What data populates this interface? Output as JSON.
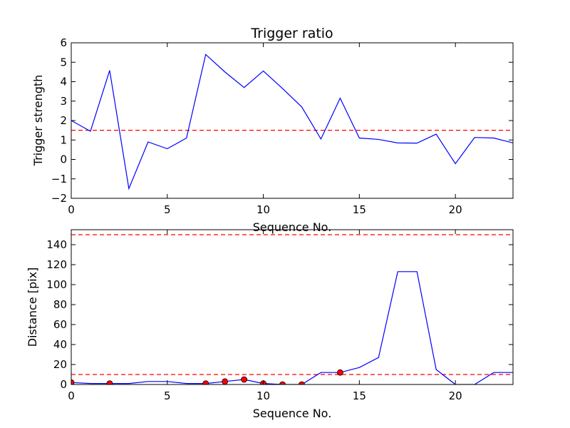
{
  "chart_data": [
    {
      "type": "line",
      "title": "Trigger ratio",
      "xlabel": "Sequence No.",
      "ylabel": "Trigger strength",
      "xlim": [
        0,
        23
      ],
      "ylim": [
        -2,
        6
      ],
      "xticks": [
        0,
        5,
        10,
        15,
        20
      ],
      "yticks": [
        -2,
        -1,
        0,
        1,
        2,
        3,
        4,
        5,
        6
      ],
      "xtick_labels": [
        "0",
        "5",
        "10",
        "15",
        "20"
      ],
      "ytick_labels": [
        "−2",
        "−1",
        "0",
        "1",
        "2",
        "3",
        "4",
        "5",
        "6"
      ],
      "grid": false,
      "series": [
        {
          "color": "#0000ff",
          "style": "solid",
          "x": [
            0,
            1,
            2,
            3,
            4,
            5,
            6,
            7,
            8,
            9,
            10,
            11,
            12,
            13,
            14,
            15,
            16,
            17,
            18,
            19,
            20,
            21,
            22,
            23
          ],
          "values": [
            2.0,
            1.45,
            4.58,
            -1.5,
            0.9,
            0.55,
            1.1,
            5.4,
            4.5,
            3.7,
            4.55,
            3.65,
            2.7,
            1.05,
            3.15,
            1.1,
            1.03,
            0.85,
            0.84,
            1.3,
            -0.22,
            1.13,
            1.1,
            0.85
          ]
        }
      ],
      "reference_lines": [
        {
          "y": 1.5,
          "color": "#ff0000",
          "style": "dashed"
        }
      ]
    },
    {
      "type": "line",
      "title": "",
      "xlabel": "Sequence No.",
      "ylabel": "Distance [pix]",
      "xlim": [
        0,
        23
      ],
      "ylim": [
        0,
        155
      ],
      "xticks": [
        0,
        5,
        10,
        15,
        20
      ],
      "yticks": [
        0,
        20,
        40,
        60,
        80,
        100,
        120,
        140
      ],
      "xtick_labels": [
        "0",
        "5",
        "10",
        "15",
        "20"
      ],
      "ytick_labels": [
        "0",
        "20",
        "40",
        "60",
        "80",
        "100",
        "120",
        "140"
      ],
      "grid": false,
      "series": [
        {
          "color": "#0000ff",
          "style": "solid",
          "x": [
            0,
            1,
            2,
            3,
            4,
            5,
            6,
            7,
            8,
            9,
            10,
            11,
            12,
            13,
            14,
            15,
            16,
            17,
            18,
            19,
            20,
            21,
            22,
            23
          ],
          "values": [
            2,
            1,
            1,
            1,
            3,
            3,
            1,
            1,
            3,
            5,
            1,
            0,
            0,
            12,
            12,
            17,
            27,
            113,
            113,
            15,
            0,
            0,
            12,
            12
          ]
        },
        {
          "color": "#ff0000",
          "style": "markers",
          "x": [
            0,
            2,
            7,
            8,
            9,
            10,
            11,
            12,
            14
          ],
          "values": [
            2,
            1,
            1,
            3,
            5,
            1,
            0,
            0,
            12
          ]
        }
      ],
      "reference_lines": [
        {
          "y": 150,
          "color": "#ff0000",
          "style": "dashed"
        },
        {
          "y": 10,
          "color": "#ff0000",
          "style": "dashed"
        }
      ]
    }
  ]
}
